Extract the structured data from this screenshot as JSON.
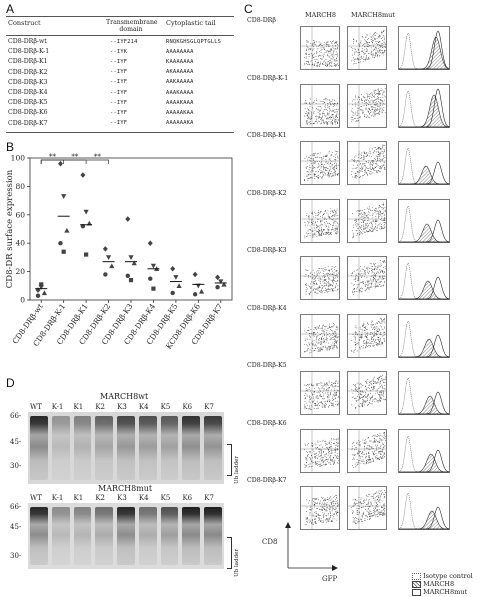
{
  "panels": {
    "a": "A",
    "b": "B",
    "c": "C",
    "d": "D"
  },
  "table": {
    "headers": [
      "Construct",
      "Transmembrane domain",
      "Cytoplastic tail"
    ],
    "tm_header_line1": "Transmembrane",
    "tm_header_line2": "domain",
    "rows": [
      {
        "construct": "CD8-DRβ-wt",
        "tm": "--IYF214",
        "tail": "RNQKGHSGLQPTGLLS"
      },
      {
        "construct": "CD8-DRβ-K-1",
        "tm": "--IYK",
        "tail": "AAAAAAAA"
      },
      {
        "construct": "CD8-DRβ-K1",
        "tm": "--IYF",
        "tail": "KAAAAAAA"
      },
      {
        "construct": "CD8-DRβ-K2",
        "tm": "--IYF",
        "tail": "AKAAAAAA"
      },
      {
        "construct": "CD8-DRβ-K3",
        "tm": "--IYF",
        "tail": "AAKAAAAA"
      },
      {
        "construct": "CD8-DRβ-K4",
        "tm": "--IYF",
        "tail": "AAAKAAAA"
      },
      {
        "construct": "CD8-DRβ-K5",
        "tm": "--IYF",
        "tail": "AAAAKAAA"
      },
      {
        "construct": "CD8-DRβ-K6",
        "tm": "--IYF",
        "tail": "AAAAAKAA"
      },
      {
        "construct": "CD8-DRβ-K7",
        "tm": "--IYF",
        "tail": "AAAAAAKA"
      }
    ]
  },
  "chart_data": {
    "type": "scatter",
    "ylabel": "CD8-DR surface expression",
    "ylim": [
      0,
      100
    ],
    "yticks": [
      0,
      20,
      40,
      60,
      80,
      100
    ],
    "categories": [
      "CD8-DRβ-wt",
      "CD8-DRβ-K-1",
      "CD8-DRβ-K1",
      "CD8-DRβ-K2",
      "CD8-DRβ-K3",
      "CD8-DRβ-K4",
      "CD8-DRβ-K5",
      "KCD8-DRβ-K6",
      "CD8-DRβ-K7"
    ],
    "points": [
      [
        7,
        9,
        5,
        3,
        11
      ],
      [
        96,
        73,
        49,
        40,
        34
      ],
      [
        88,
        62,
        54,
        52,
        32
      ],
      [
        36,
        30,
        24,
        18
      ],
      [
        57,
        30,
        26,
        17,
        14
      ],
      [
        40,
        24,
        22,
        15,
        8
      ],
      [
        22,
        16,
        10,
        5
      ],
      [
        18,
        10,
        6,
        4
      ],
      [
        16,
        13,
        11,
        9
      ]
    ],
    "means": [
      8,
      59,
      53,
      27,
      27,
      22,
      13,
      11,
      12
    ],
    "significance": [
      {
        "from": 0,
        "to": 1,
        "label": "**"
      },
      {
        "from": 0,
        "to": 2,
        "label": "**"
      },
      {
        "from": 0,
        "to": 3,
        "label": "**"
      }
    ]
  },
  "flow": {
    "col_headers": [
      "MARCH8",
      "MARCH8mut"
    ],
    "rows": [
      "CD8-DRβ",
      "CD8-DRβ-K-1",
      "CD8-DRβ-K1",
      "CD8-DRβ-K2",
      "CD8-DRβ-K3",
      "CD8-DRβ-K4",
      "CD8-DRβ-K5",
      "CD8-DRβ-K6",
      "CD8-DRβ-K7"
    ],
    "y_axis": "CD8",
    "x_axis": "GFP",
    "legend": [
      "Isotype control",
      "MARCH8",
      "MARCH8mut"
    ]
  },
  "blots": {
    "top_title": "MARCH8wt",
    "bottom_title": "MARCH8mut",
    "lanes": [
      "WT",
      "K-1",
      "K1",
      "K2",
      "K3",
      "K4",
      "K5",
      "K6",
      "K7"
    ],
    "markers": [
      "66-",
      "45-",
      "30-"
    ],
    "ub_label": "Ub ladder"
  }
}
